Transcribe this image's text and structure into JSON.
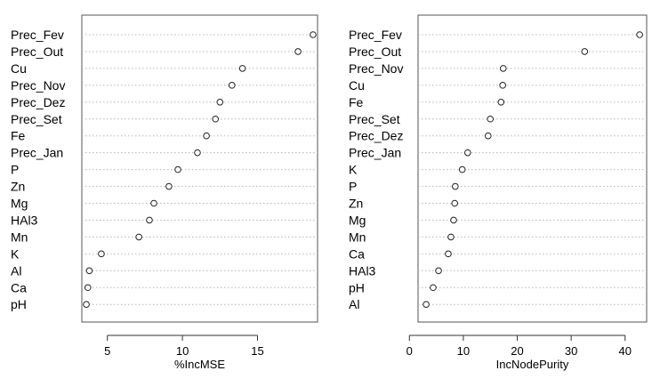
{
  "chart_data": [
    {
      "type": "scatter",
      "xlabel": "%IncMSE",
      "ticks": [
        5,
        10,
        15
      ],
      "xlim": [
        3.3,
        19.0
      ],
      "grid": true,
      "categories": [
        "Prec_Fev",
        "Prec_Out",
        "Cu",
        "Prec_Nov",
        "Prec_Dez",
        "Prec_Set",
        "Fe",
        "Prec_Jan",
        "P",
        "Zn",
        "Mg",
        "HAl3",
        "Mn",
        "K",
        "Al",
        "Ca",
        "pH"
      ],
      "values": [
        18.7,
        17.7,
        14.0,
        13.3,
        12.5,
        12.2,
        11.6,
        11.0,
        9.7,
        9.1,
        8.1,
        7.8,
        7.1,
        4.6,
        3.8,
        3.7,
        3.6
      ]
    },
    {
      "type": "scatter",
      "xlabel": "IncNodePurity",
      "ticks": [
        0,
        10,
        20,
        30,
        40
      ],
      "xlim": [
        1.6,
        44.0
      ],
      "grid": true,
      "categories": [
        "Prec_Fev",
        "Prec_Out",
        "Prec_Nov",
        "Cu",
        "Fe",
        "Prec_Set",
        "Prec_Dez",
        "Prec_Jan",
        "K",
        "P",
        "Zn",
        "Mg",
        "Mn",
        "Ca",
        "HAl3",
        "pH",
        "Al"
      ],
      "values": [
        42.7,
        32.5,
        17.4,
        17.3,
        17.0,
        15.0,
        14.6,
        10.8,
        9.8,
        8.5,
        8.4,
        8.2,
        7.7,
        7.2,
        5.4,
        4.4,
        3.1
      ]
    }
  ]
}
